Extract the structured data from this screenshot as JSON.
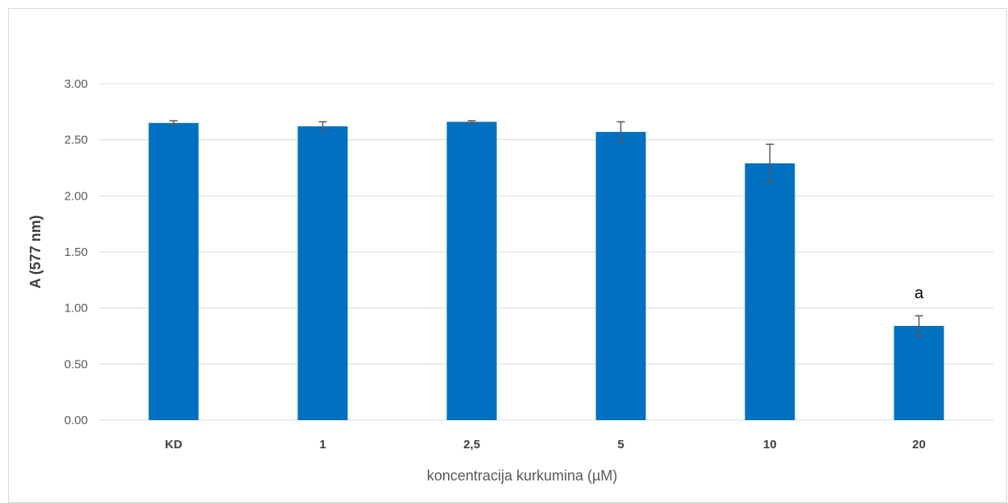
{
  "chart_data": {
    "type": "bar",
    "title": "",
    "xlabel": "koncentracija kurkumina (µM)",
    "ylabel": "A (577 nm)",
    "categories": [
      "KD",
      "1",
      "2,5",
      "5",
      "10",
      "20"
    ],
    "values": [
      2.65,
      2.62,
      2.66,
      2.57,
      2.29,
      0.84
    ],
    "errors": [
      0.02,
      0.04,
      0.01,
      0.09,
      0.17,
      0.09
    ],
    "annotations": [
      "",
      "",
      "",
      "",
      "",
      "a"
    ],
    "ylim": [
      0,
      3
    ],
    "yticks": [
      "0.00",
      "0.50",
      "1.00",
      "1.50",
      "2.00",
      "2.50",
      "3.00"
    ],
    "ytick_values": [
      0,
      0.5,
      1,
      1.5,
      2,
      2.5,
      3
    ],
    "grid": true,
    "legend": "none",
    "colors": {
      "bar": "#0070C0",
      "grid": "#d9d9d9",
      "error_bar": "#595959"
    }
  }
}
